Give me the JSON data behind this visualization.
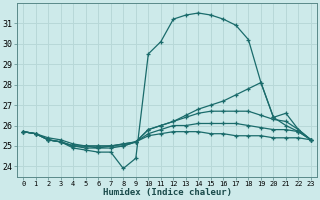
{
  "xlabel": "Humidex (Indice chaleur)",
  "bg_color": "#cdeaea",
  "grid_color": "#b8d8d8",
  "line_color": "#1a6b6b",
  "spine_color": "#5a8a8a",
  "xlim": [
    -0.5,
    23.5
  ],
  "ylim": [
    23.5,
    32.0
  ],
  "xticks": [
    0,
    1,
    2,
    3,
    4,
    5,
    6,
    7,
    8,
    9,
    10,
    11,
    12,
    13,
    14,
    15,
    16,
    17,
    18,
    19,
    20,
    21,
    22,
    23
  ],
  "yticks": [
    24,
    25,
    26,
    27,
    28,
    29,
    30,
    31
  ],
  "series": [
    [
      25.7,
      25.6,
      25.3,
      25.2,
      24.9,
      24.8,
      24.7,
      24.7,
      23.9,
      24.4,
      29.5,
      30.1,
      31.2,
      31.4,
      31.5,
      31.4,
      31.2,
      30.9,
      30.2,
      28.1,
      26.4,
      26.6,
      25.8,
      25.3
    ],
    [
      25.7,
      25.6,
      25.4,
      25.3,
      25.1,
      25.0,
      25.0,
      25.0,
      25.0,
      25.2,
      25.8,
      26.0,
      26.2,
      26.5,
      26.8,
      27.0,
      27.2,
      27.5,
      27.8,
      28.1,
      26.4,
      26.0,
      25.7,
      25.3
    ],
    [
      25.7,
      25.6,
      25.3,
      25.2,
      25.0,
      24.9,
      24.9,
      24.9,
      25.0,
      25.2,
      25.8,
      26.0,
      26.2,
      26.4,
      26.6,
      26.7,
      26.7,
      26.7,
      26.7,
      26.5,
      26.3,
      26.2,
      25.8,
      25.3
    ],
    [
      25.7,
      25.6,
      25.3,
      25.2,
      25.0,
      25.0,
      25.0,
      25.0,
      25.1,
      25.2,
      25.6,
      25.8,
      26.0,
      26.0,
      26.1,
      26.1,
      26.1,
      26.1,
      26.0,
      25.9,
      25.8,
      25.8,
      25.7,
      25.3
    ],
    [
      25.7,
      25.6,
      25.3,
      25.2,
      25.0,
      25.0,
      24.9,
      25.0,
      25.1,
      25.2,
      25.5,
      25.6,
      25.7,
      25.7,
      25.7,
      25.6,
      25.6,
      25.5,
      25.5,
      25.5,
      25.4,
      25.4,
      25.4,
      25.3
    ]
  ]
}
